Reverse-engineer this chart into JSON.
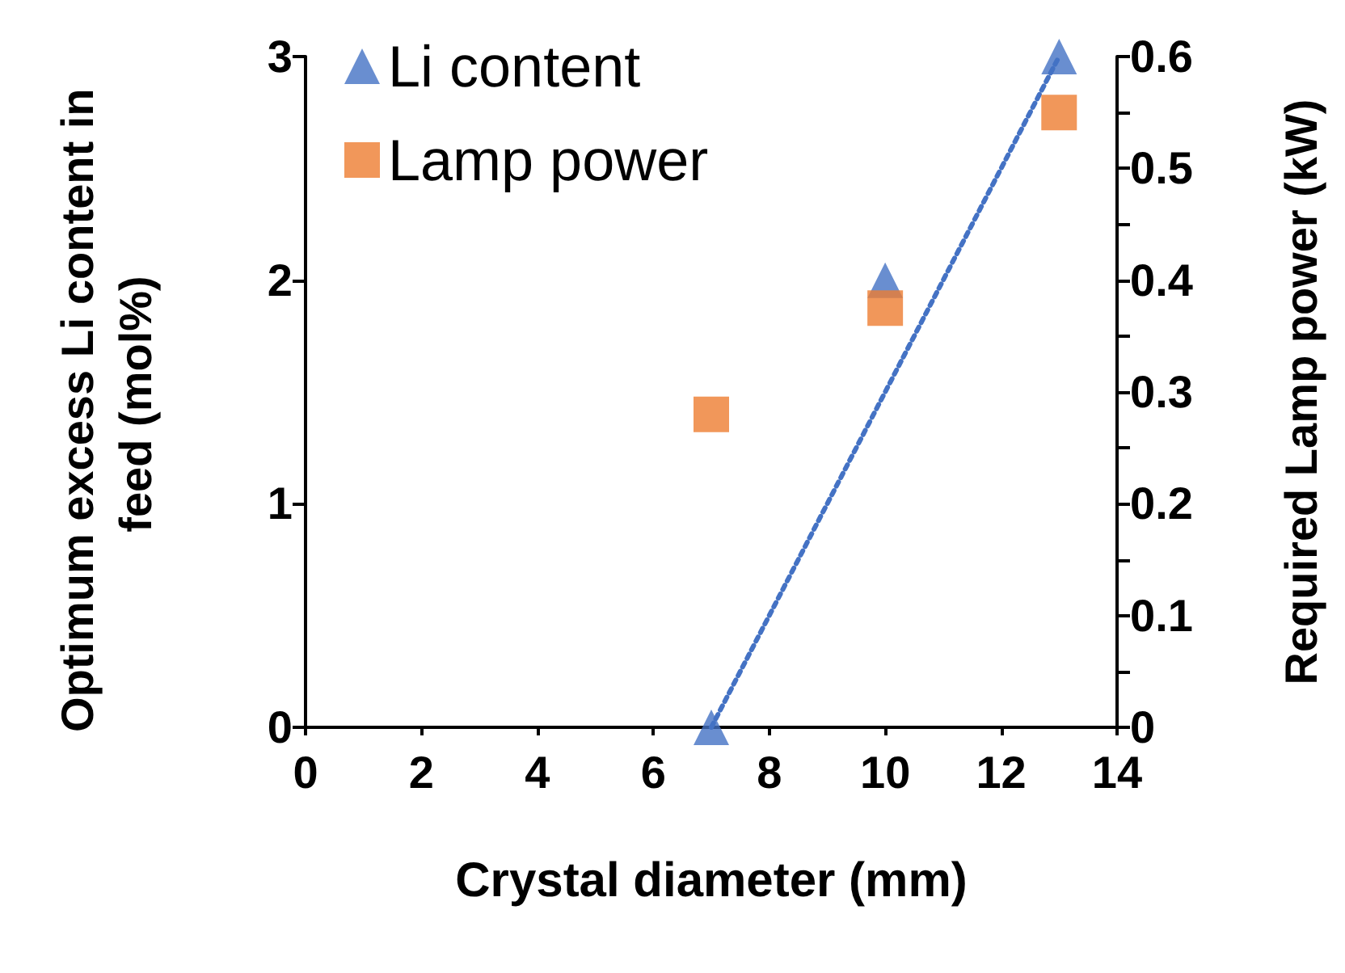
{
  "chart_data": {
    "type": "scatter",
    "xlabel": "Crystal diameter (mm)",
    "ylabel": "Optimum excess Li content in feed (mol%)",
    "y2label": "Required Lamp power (kW)",
    "xlim": [
      0,
      14
    ],
    "xticks": [
      0,
      2,
      4,
      6,
      8,
      10,
      12,
      14
    ],
    "ylim": [
      0,
      3
    ],
    "yticks": [
      0,
      1,
      2,
      3
    ],
    "y2lim": [
      0,
      0.6
    ],
    "y2ticks": [
      0,
      {
        "value": 0.05,
        "label": null
      },
      0.1,
      {
        "value": 0.15,
        "label": null
      },
      0.2,
      {
        "value": 0.25,
        "label": null
      },
      0.3,
      {
        "value": 0.35,
        "label": null
      },
      0.4,
      {
        "value": 0.45,
        "label": null
      },
      0.5,
      {
        "value": 0.55,
        "label": null
      },
      0.6
    ],
    "grid": false,
    "legend": "top left",
    "series": [
      {
        "name": "Li content",
        "marker": "triangle",
        "color": "#4472c4",
        "x": [
          7,
          10,
          13
        ],
        "values": [
          0,
          2,
          3
        ]
      },
      {
        "name": "Lamp power",
        "marker": "square",
        "color": "#ed7d31",
        "axis": "y2",
        "x": [
          7,
          10,
          13
        ],
        "values": [
          0.28,
          0.375,
          0.55
        ]
      },
      {
        "type": "line",
        "marker": "none",
        "line_style": "dotted",
        "color": "#4472c4",
        "x": [
          7,
          13
        ],
        "values": [
          0,
          3
        ]
      }
    ]
  }
}
